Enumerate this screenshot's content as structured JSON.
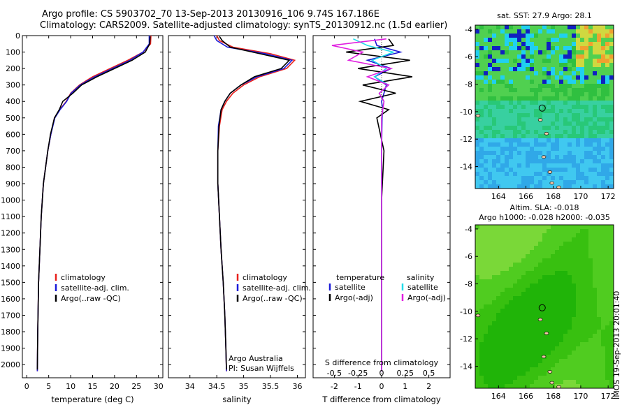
{
  "header": {
    "line1": "Argo profile: CS 5903702_70 13-Sep-2013 20130916_106 9.74S 167.186E",
    "line2": "Climatology: CARS2009. Satellite-adjusted climatology: synTS_20130912.nc (1.5d earlier)"
  },
  "colors": {
    "climatology": "#e8201c",
    "satellite": "#1a1ad8",
    "argo": "#000000",
    "sat_salinity": "#22dcea",
    "argo_salinity": "#e020e0"
  },
  "stamp": "IMOS 19-Sep-2013 20:01:40",
  "chart_data": [
    {
      "id": "temperature",
      "type": "line",
      "xlabel": "temperature (deg C)",
      "ylabel": "",
      "xlim": [
        -1,
        31
      ],
      "ylim": [
        2080,
        0
      ],
      "y_inverted": true,
      "xticks": [
        0,
        5,
        10,
        15,
        20,
        25,
        30
      ],
      "yticks": [
        0,
        100,
        200,
        300,
        400,
        500,
        600,
        700,
        800,
        900,
        1000,
        1100,
        1200,
        1300,
        1400,
        1500,
        1600,
        1700,
        1800,
        1900,
        2000
      ],
      "legend": [
        "climatology",
        "satellite-adj. clim.",
        "Argo(..raw -QC)"
      ],
      "legend_position": "lower-center",
      "series": [
        {
          "name": "climatology",
          "color_key": "climatology",
          "x": [
            28.3,
            28.2,
            26.5,
            23,
            19,
            15,
            12,
            10,
            9,
            7.5,
            6.3,
            5.5,
            4.8,
            3.8,
            3.3,
            3.0,
            2.7,
            2.5,
            2.4
          ],
          "y": [
            0,
            50,
            100,
            150,
            200,
            250,
            300,
            350,
            400,
            450,
            500,
            600,
            700,
            900,
            1100,
            1300,
            1500,
            1800,
            2040
          ]
        },
        {
          "name": "satellite-adj. clim.",
          "color_key": "satellite",
          "x": [
            27.9,
            27.9,
            26.5,
            23.5,
            19.5,
            15.5,
            12.2,
            10.1,
            9.1,
            7.6,
            6.4,
            5.5,
            4.8,
            3.8,
            3.3,
            3.0,
            2.7,
            2.5,
            2.4
          ],
          "y": [
            0,
            50,
            100,
            150,
            200,
            250,
            300,
            350,
            400,
            450,
            500,
            600,
            700,
            900,
            1100,
            1300,
            1500,
            1800,
            2040
          ]
        },
        {
          "name": "Argo(..raw -QC)",
          "color_key": "argo",
          "x": [
            28.1,
            28.0,
            27.0,
            24,
            20,
            16,
            12.5,
            10.5,
            8.2,
            7.4,
            6.3,
            5.4,
            4.8,
            3.8,
            3.3,
            3.0,
            2.7,
            2.5,
            2.4
          ],
          "y": [
            5,
            50,
            100,
            150,
            200,
            250,
            300,
            350,
            400,
            450,
            500,
            600,
            700,
            900,
            1100,
            1300,
            1500,
            1800,
            2030
          ]
        }
      ]
    },
    {
      "id": "salinity",
      "type": "line",
      "xlabel": "salinity",
      "ylabel": "",
      "xlim": [
        33.6,
        36.15
      ],
      "ylim": [
        2080,
        0
      ],
      "y_inverted": true,
      "xticks": [
        34,
        34.5,
        35,
        35.5,
        36
      ],
      "legend": [
        "climatology",
        "satellite-adj. clim.",
        "Argo(..raw -QC)"
      ],
      "legend_position": "lower-center",
      "annotation": [
        "Argo Australia",
        "PI: Susan Wijffels"
      ],
      "series": [
        {
          "name": "climatology",
          "color_key": "climatology",
          "x": [
            34.5,
            34.55,
            34.8,
            35.5,
            35.95,
            35.8,
            35.3,
            35.0,
            34.8,
            34.68,
            34.6,
            34.55,
            34.52,
            34.52,
            34.55,
            34.58,
            34.62,
            34.65,
            34.67,
            34.68
          ],
          "y": [
            0,
            30,
            70,
            110,
            150,
            200,
            250,
            300,
            350,
            400,
            450,
            550,
            700,
            900,
            1100,
            1300,
            1500,
            1700,
            1900,
            2040
          ]
        },
        {
          "name": "satellite-adj. clim.",
          "color_key": "satellite",
          "x": [
            34.45,
            34.5,
            34.7,
            35.4,
            35.9,
            35.75,
            35.25,
            34.95,
            34.75,
            34.65,
            34.58,
            34.53,
            34.52,
            34.52,
            34.55,
            34.58,
            34.62,
            34.65,
            34.67,
            34.68
          ],
          "y": [
            0,
            30,
            70,
            110,
            150,
            200,
            250,
            300,
            350,
            400,
            450,
            550,
            700,
            900,
            1100,
            1300,
            1500,
            1700,
            1900,
            2040
          ]
        },
        {
          "name": "Argo(..raw -QC)",
          "color_key": "argo",
          "x": [
            34.55,
            34.6,
            34.75,
            35.3,
            35.85,
            35.7,
            35.2,
            34.95,
            34.75,
            34.65,
            34.58,
            34.54,
            34.52,
            34.52,
            34.55,
            34.58,
            34.62,
            34.65,
            34.67,
            34.68
          ],
          "y": [
            5,
            30,
            70,
            110,
            150,
            200,
            250,
            300,
            350,
            400,
            450,
            550,
            700,
            900,
            1100,
            1300,
            1500,
            1700,
            1900,
            2030
          ]
        }
      ]
    },
    {
      "id": "differences",
      "type": "line",
      "xlabel": "T difference from climatology",
      "xlabel_top": "S difference from climatology",
      "xlim": [
        -2.9,
        2.9
      ],
      "ylim": [
        2080,
        0
      ],
      "y_inverted": true,
      "xticks": [
        -2,
        -1,
        0,
        1,
        2
      ],
      "xticks_s": [
        "-0.5",
        "-0.25",
        "0",
        "0.25",
        "0.5"
      ],
      "xticks_s_x": [
        -2,
        -1,
        0,
        1,
        2
      ],
      "legend_title_t": "temperature",
      "legend_title_s": "salinity",
      "legend_t": [
        "satellite",
        "Argo(-adj)"
      ],
      "legend_s": [
        "satellite",
        "Argo(-adj)"
      ],
      "series": [
        {
          "name": "temperature satellite",
          "color_key": "satellite",
          "x": [
            -0.3,
            -0.2,
            0.8,
            -0.6,
            0.4,
            -0.3,
            0.2,
            0.1,
            0,
            0.05,
            0.02,
            0,
            0,
            0,
            0
          ],
          "y": [
            20,
            60,
            100,
            150,
            200,
            250,
            300,
            350,
            400,
            450,
            500,
            700,
            1000,
            1500,
            2040
          ]
        },
        {
          "name": "temperature Argo(-adj)",
          "color_key": "argo",
          "x": [
            0.3,
            0.5,
            -1.5,
            1.2,
            -1.0,
            1.3,
            -0.8,
            0.6,
            -0.9,
            0.3,
            -0.2,
            0.1,
            0,
            0,
            0
          ],
          "y": [
            20,
            60,
            100,
            150,
            200,
            250,
            300,
            350,
            400,
            450,
            500,
            700,
            1000,
            1500,
            2040
          ]
        },
        {
          "name": "salinity satellite",
          "color_key": "sat_salinity",
          "x": [
            -1.2,
            -0.6,
            0.5,
            -0.4,
            0.2,
            -0.3,
            0.3,
            -0.1,
            0.1,
            0,
            0,
            0,
            0
          ],
          "y": [
            20,
            60,
            100,
            150,
            200,
            250,
            300,
            350,
            400,
            500,
            800,
            1400,
            2040
          ]
        },
        {
          "name": "salinity Argo(-adj)",
          "color_key": "argo_salinity",
          "x": [
            0.2,
            -2.1,
            -0.8,
            -1.4,
            0.4,
            -0.6,
            0.3,
            -0.1,
            0.1,
            0,
            0,
            0,
            0
          ],
          "y": [
            20,
            60,
            100,
            150,
            200,
            250,
            300,
            350,
            400,
            500,
            800,
            1400,
            2040
          ]
        }
      ]
    },
    {
      "id": "sst_map",
      "type": "heatmap",
      "title": "sat. SST: 27.9  Argo: 28.1",
      "xticks": [
        164,
        166,
        168,
        170,
        172
      ],
      "yticks": [
        -4,
        -6,
        -8,
        -10,
        -12,
        -14
      ],
      "xlim": [
        162.3,
        172.4
      ],
      "ylim": [
        -15.6,
        -3.7
      ],
      "argo_position": [
        167.186,
        -9.74
      ]
    },
    {
      "id": "sla_map",
      "type": "heatmap",
      "title_line1": "Altim. SLA: -0.018",
      "title_line2": "Argo h1000: -0.028 h2000: -0.035",
      "xticks": [
        164,
        166,
        168,
        170,
        172
      ],
      "yticks": [
        -4,
        -6,
        -8,
        -10,
        -12,
        -14
      ],
      "xlim": [
        162.3,
        172.4
      ],
      "ylim": [
        -15.6,
        -3.7
      ],
      "argo_position": [
        167.186,
        -9.74
      ]
    }
  ]
}
